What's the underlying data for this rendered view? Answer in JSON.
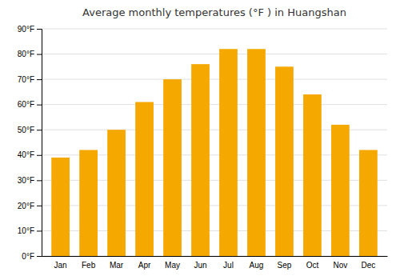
{
  "chart_data": {
    "type": "bar",
    "title": "Average monthly temperatures (°F ) in Huangshan",
    "categories": [
      "Jan",
      "Feb",
      "Mar",
      "Apr",
      "May",
      "Jun",
      "Jul",
      "Aug",
      "Sep",
      "Oct",
      "Nov",
      "Dec"
    ],
    "values": [
      39,
      42,
      50,
      61,
      70,
      76,
      82,
      82,
      75,
      64,
      52,
      42
    ],
    "color": "#F5A800",
    "ylim": [
      0,
      90
    ],
    "yticks": [
      {
        "value": 0,
        "label": "0°F"
      },
      {
        "value": 10,
        "label": "10°F"
      },
      {
        "value": 20,
        "label": "20°F"
      },
      {
        "value": 30,
        "label": "30°F"
      },
      {
        "value": 40,
        "label": "40°F"
      },
      {
        "value": 50,
        "label": "50°F"
      },
      {
        "value": 60,
        "label": "60°F"
      },
      {
        "value": 70,
        "label": "70°F"
      },
      {
        "value": 80,
        "label": "80°F"
      },
      {
        "value": 90,
        "label": "90°F"
      }
    ],
    "grid": true
  }
}
